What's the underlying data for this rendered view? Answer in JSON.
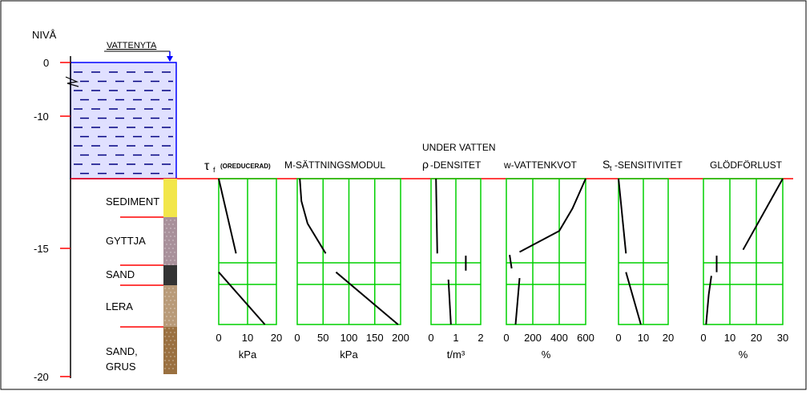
{
  "colors": {
    "water_fill": "#0000ff",
    "water_dash": "#000080",
    "grid": "#00d000",
    "ref_line": "#ff0000",
    "profile": "#000000",
    "sediment": "#f2e64a",
    "gyttja": "#a8909a",
    "sand": "#333333",
    "lera": "#b89a78",
    "sand_grus": "#9a7040"
  },
  "left": {
    "title": "NIVÅ",
    "water_label": "VATTENYTA",
    "level_labels": [
      "0",
      "-10",
      "-15",
      "-20"
    ],
    "layers": [
      "SEDIMENT",
      "GYTTJA",
      "SAND",
      "LERA",
      "SAND,",
      "GRUS"
    ]
  },
  "panels": [
    {
      "id": "tau",
      "symbol": "τ",
      "sub": "f",
      "title_small": "(OREDUCERAD)",
      "ticks": [
        "0",
        "10",
        "20"
      ],
      "unit": "kPa",
      "xmin": 0,
      "xmax": 20,
      "segments": [
        [
          [
            0,
            0
          ],
          [
            6,
            1
          ]
        ],
        [
          [
            0,
            1.25
          ],
          [
            16,
            1.95
          ]
        ]
      ]
    },
    {
      "id": "m",
      "title": "M-SÄTTNINGSMODUL",
      "ticks": [
        "0",
        "50",
        "100",
        "150",
        "200"
      ],
      "unit": "kPa",
      "xmin": 0,
      "xmax": 200,
      "segments": [
        [
          [
            5,
            0
          ],
          [
            8,
            0.3
          ],
          [
            20,
            0.6
          ],
          [
            55,
            1
          ]
        ],
        [
          [
            75,
            1.25
          ],
          [
            195,
            1.95
          ]
        ]
      ]
    },
    {
      "id": "rho",
      "top_label": "UNDER VATTEN",
      "symbol": "ρ",
      "title": "-DENSITET",
      "ticks": [
        "0",
        "1",
        "2"
      ],
      "unit": "t/m³",
      "xmin": 0,
      "xmax": 2,
      "segments": [
        [
          [
            0.2,
            0
          ],
          [
            0.25,
            1
          ]
        ],
        [
          [
            1.4,
            1.03
          ],
          [
            1.4,
            1.23
          ]
        ],
        [
          [
            0.7,
            1.35
          ],
          [
            0.8,
            1.95
          ]
        ]
      ]
    },
    {
      "id": "w",
      "title": "w-VATTENKVOT",
      "ticks": [
        "0",
        "200",
        "400",
        "600"
      ],
      "unit": "%",
      "xmin": 0,
      "xmax": 600,
      "segments": [
        [
          [
            600,
            0
          ],
          [
            500,
            0.4
          ],
          [
            400,
            0.7
          ],
          [
            100,
            0.98
          ]
        ],
        [
          [
            25,
            1.02
          ],
          [
            40,
            1.2
          ]
        ],
        [
          [
            100,
            1.33
          ],
          [
            70,
            1.95
          ]
        ]
      ]
    },
    {
      "id": "st",
      "symbol": "S",
      "sub": "t",
      "title": "-SENSITIVITET",
      "ticks": [
        "0",
        "10",
        "20"
      ],
      "unit": "",
      "xmin": 0,
      "xmax": 20,
      "segments": [
        [
          [
            0,
            0
          ],
          [
            3,
            1
          ]
        ],
        [
          [
            3,
            1.25
          ],
          [
            9,
            1.95
          ]
        ]
      ]
    },
    {
      "id": "gl",
      "title": "GLÖDFÖRLUST",
      "ticks": [
        "0",
        "10",
        "20",
        "30"
      ],
      "unit": "%",
      "xmin": 0,
      "xmax": 30,
      "segments": [
        [
          [
            30,
            0
          ],
          [
            15,
            0.95
          ]
        ],
        [
          [
            5,
            1.03
          ],
          [
            5,
            1.25
          ]
        ],
        [
          [
            3,
            1.3
          ],
          [
            2,
            1.55
          ],
          [
            1,
            1.95
          ]
        ]
      ]
    }
  ]
}
